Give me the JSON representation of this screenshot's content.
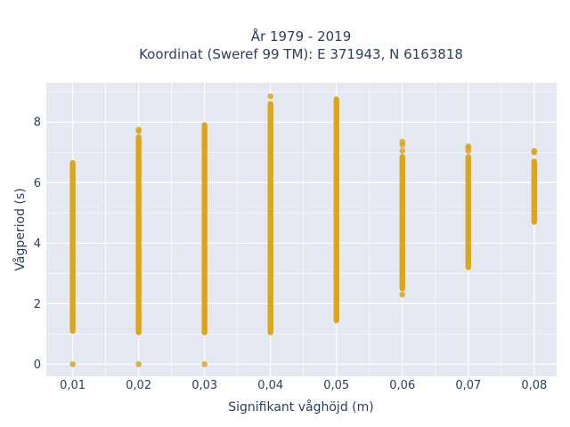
{
  "chart_data": {
    "type": "scatter",
    "title": "År 1979 - 2019",
    "subtitle": "Koordinat (Sweref 99 TM): E 371943, N 6163818",
    "xlabel": "Signifikant våghöjd (m)",
    "ylabel": "Vågperiod (s)",
    "x_tick_labels": [
      "0,01",
      "0,02",
      "0,03",
      "0,04",
      "0,05",
      "0,06",
      "0,07",
      "0,08"
    ],
    "y_tick_labels": [
      "0",
      "2",
      "4",
      "6",
      "8"
    ],
    "xlim": [
      0.006,
      0.0834
    ],
    "ylim": [
      -0.4,
      9.3
    ],
    "grid": true,
    "legend": "none",
    "point_color": "#DAA520",
    "plot_bg": "#E5E8F0",
    "series": [
      {
        "columns": [
          {
            "x": 0.01,
            "y_min": 1.1,
            "y_max": 6.65,
            "outliers": [
              0.0
            ]
          },
          {
            "x": 0.02,
            "y_min": 1.05,
            "y_max": 7.5,
            "outliers": [
              0.0,
              7.7,
              7.75
            ]
          },
          {
            "x": 0.03,
            "y_min": 1.05,
            "y_max": 7.9,
            "outliers": [
              0.0
            ]
          },
          {
            "x": 0.04,
            "y_min": 1.05,
            "y_max": 8.6,
            "outliers": [
              8.85
            ]
          },
          {
            "x": 0.05,
            "y_min": 1.45,
            "y_max": 8.75,
            "outliers": []
          },
          {
            "x": 0.06,
            "y_min": 2.5,
            "y_max": 6.85,
            "outliers": [
              2.3,
              7.05,
              7.25,
              7.35
            ]
          },
          {
            "x": 0.07,
            "y_min": 3.2,
            "y_max": 6.85,
            "outliers": [
              7.05,
              7.15,
              7.2
            ]
          },
          {
            "x": 0.08,
            "y_min": 4.7,
            "y_max": 6.7,
            "outliers": [
              7.0,
              7.05
            ]
          }
        ]
      }
    ]
  }
}
